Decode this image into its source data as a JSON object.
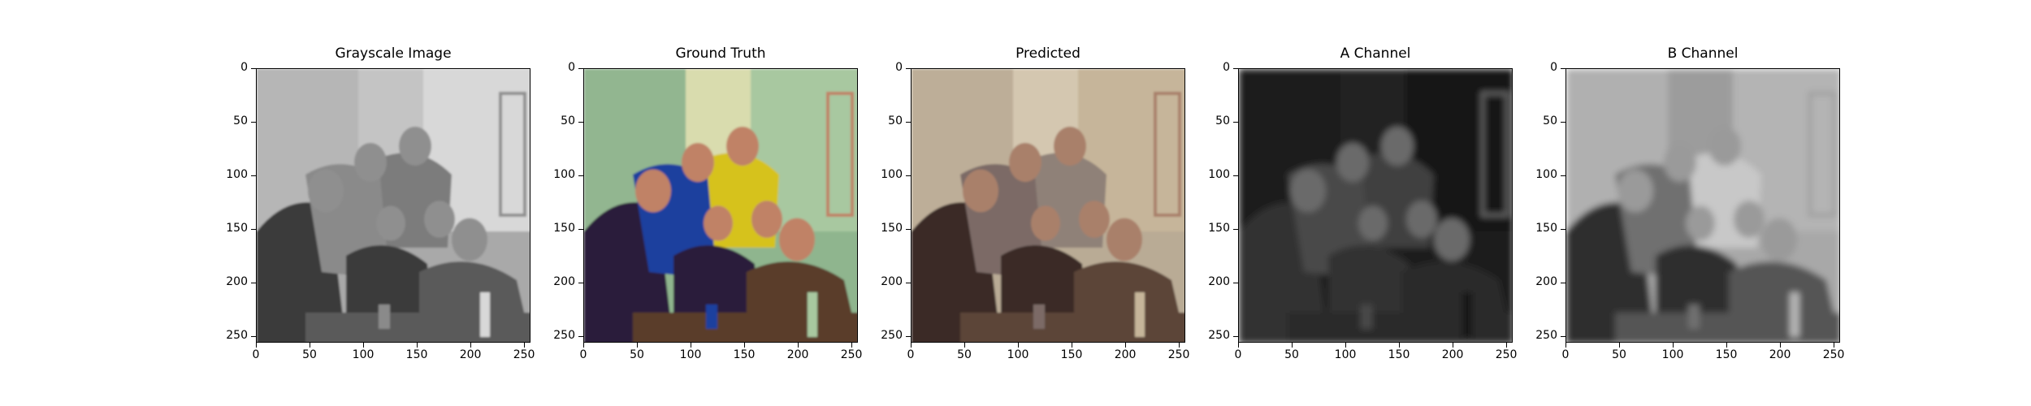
{
  "panels": [
    {
      "title": "Grayscale Image",
      "style": "gray",
      "colors": {
        "bg": "#a9a9a9",
        "wall_left": "#b6b6b6",
        "wall_mid": "#c4c4c4",
        "wall_right": "#d8d8d8",
        "clothes": "#3a3a3a",
        "shirt2": "#8a8a8a",
        "shirt3": "#7b7b7b",
        "skin": "#8f8f8f",
        "table": "#5a5a5a"
      }
    },
    {
      "title": "Ground Truth",
      "style": "color",
      "colors": {
        "bg": "#8fb58e",
        "wall_left": "#92b690",
        "wall_mid": "#d9dcae",
        "wall_right": "#a8c8a0",
        "clothes": "#2a1a3a",
        "shirt2": "#1f3f9e",
        "shirt3": "#d6c21a",
        "skin": "#c08266",
        "table": "#5a3c2a"
      }
    },
    {
      "title": "Predicted",
      "style": "color",
      "colors": {
        "bg": "#b9ab95",
        "wall_left": "#bdae98",
        "wall_mid": "#d4c7b0",
        "wall_right": "#c6b59a",
        "clothes": "#3a2a26",
        "shirt2": "#7b6a66",
        "shirt3": "#8f8178",
        "skin": "#a9806a",
        "table": "#5c4438"
      }
    },
    {
      "title": "A Channel",
      "style": "dark",
      "colors": {
        "bg": "#1e1e1e",
        "wall_left": "#1a1a1a",
        "wall_mid": "#222222",
        "wall_right": "#181818",
        "clothes": "#333333",
        "shirt2": "#4a4a4a",
        "shirt3": "#404040",
        "skin": "#6a6a6a",
        "table": "#2a2a2a"
      }
    },
    {
      "title": "B Channel",
      "style": "light",
      "colors": {
        "bg": "#a8a8a8",
        "wall_left": "#b0b0b0",
        "wall_mid": "#9c9c9c",
        "wall_right": "#b4b4b4",
        "clothes": "#2e2e2e",
        "shirt2": "#707070",
        "shirt3": "#c8c8c8",
        "skin": "#9a9a9a",
        "table": "#555555"
      }
    }
  ],
  "axis": {
    "x_ticks": [
      "0",
      "50",
      "100",
      "150",
      "200",
      "250"
    ],
    "y_ticks": [
      "0",
      "50",
      "100",
      "150",
      "200",
      "250"
    ],
    "x_tick_values": [
      0,
      50,
      100,
      150,
      200,
      250
    ],
    "y_tick_values": [
      0,
      50,
      100,
      150,
      200,
      250
    ],
    "range": [
      0,
      256
    ]
  }
}
